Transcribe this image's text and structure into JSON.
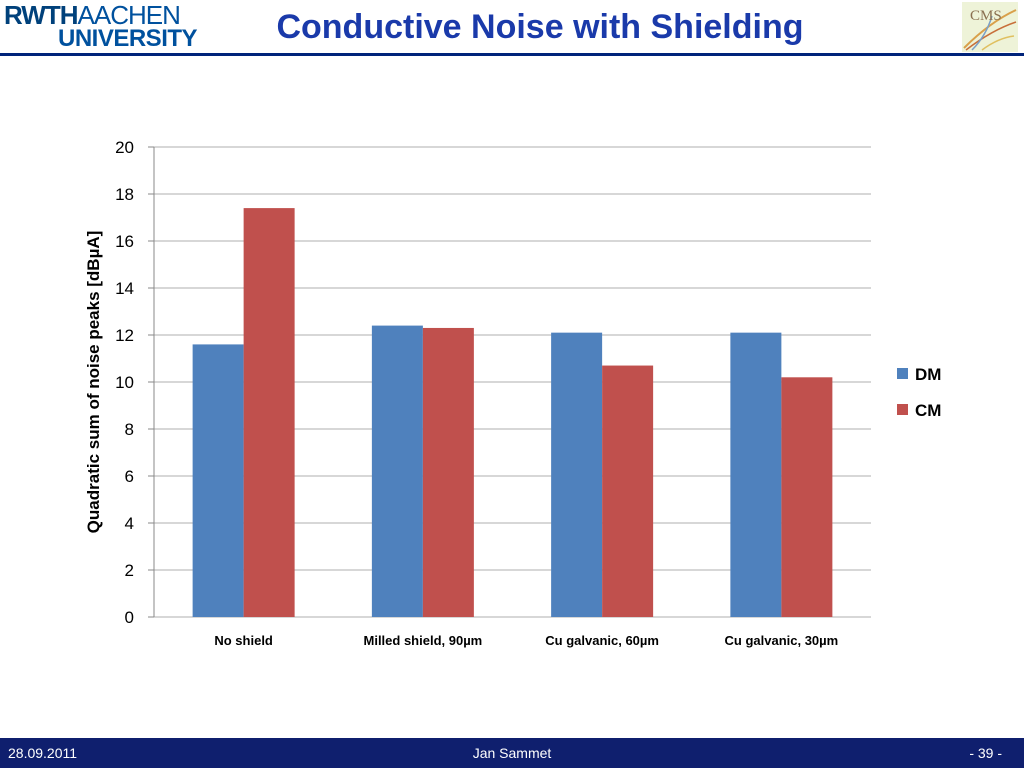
{
  "header": {
    "title": "Conductive Noise with Shielding",
    "logo_rwth": "RWTH",
    "logo_aachen": "AACHEN",
    "logo_university": "UNIVERSITY",
    "cms_text": "CMS"
  },
  "footer": {
    "date": "28.09.2011",
    "author": "Jan Sammet",
    "page": "- 39 -"
  },
  "colors": {
    "DM": "#4f81bd",
    "CM": "#c0504d",
    "grid": "#bfbfbf",
    "footer_bg": "#0f1f6e"
  },
  "chart_data": {
    "type": "bar",
    "categories": [
      "No shield",
      "Milled shield, 90µm",
      "Cu galvanic, 60µm",
      "Cu galvanic, 30µm"
    ],
    "series": [
      {
        "name": "DM",
        "values": [
          11.6,
          12.4,
          12.1,
          12.1
        ]
      },
      {
        "name": "CM",
        "values": [
          17.4,
          12.3,
          10.7,
          10.2
        ]
      }
    ],
    "title": "",
    "xlabel": "",
    "ylabel": "Quadratic sum of noise peaks [dBµA]",
    "ylim": [
      0,
      20
    ],
    "yticks": [
      0,
      2,
      4,
      6,
      8,
      10,
      12,
      14,
      16,
      18,
      20
    ],
    "grid": true,
    "legend": "right"
  }
}
